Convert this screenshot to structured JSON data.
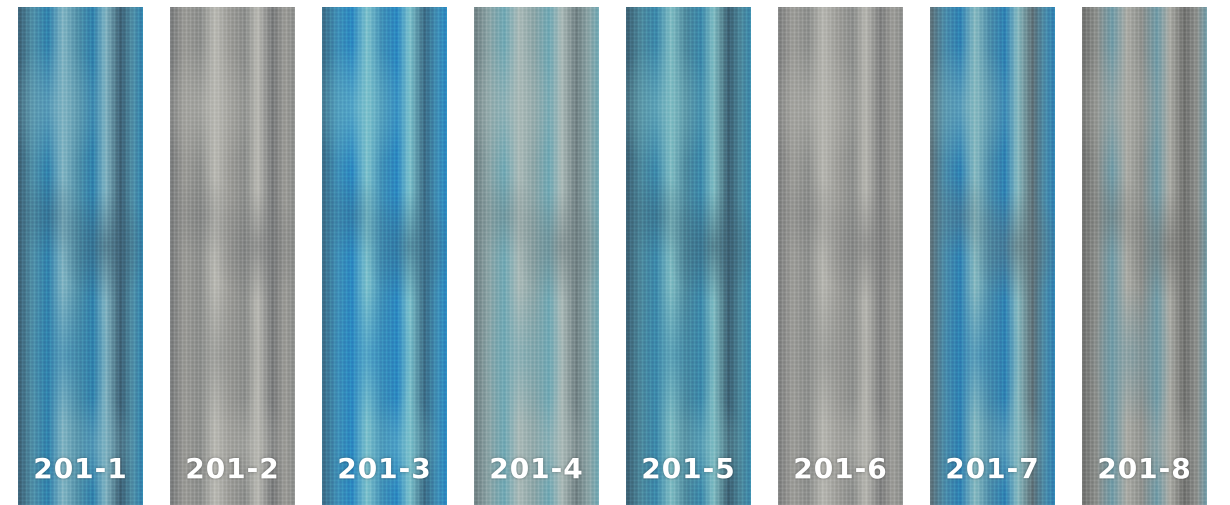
{
  "swatches": [
    {
      "code": "201-1",
      "base": "#4f8ea7",
      "accent": "#2f7fab",
      "highlight": "#7fb3c2",
      "shade": "#3c5f73"
    },
    {
      "code": "201-2",
      "base": "#9a9a96",
      "accent": "#8a8c8a",
      "highlight": "#b8b8b2",
      "shade": "#77797a"
    },
    {
      "code": "201-3",
      "base": "#3f8db5",
      "accent": "#2a86c0",
      "highlight": "#7cc1cc",
      "shade": "#3b6a84"
    },
    {
      "code": "201-4",
      "base": "#8aa4a6",
      "accent": "#6fa7b3",
      "highlight": "#a9b9b7",
      "shade": "#6f7f82"
    },
    {
      "code": "201-5",
      "base": "#4c879c",
      "accent": "#3a86a9",
      "highlight": "#7fbcc3",
      "shade": "#3b5e70"
    },
    {
      "code": "201-6",
      "base": "#9c9c98",
      "accent": "#8b8d8b",
      "highlight": "#b5b5af",
      "shade": "#7d7e7e"
    },
    {
      "code": "201-7",
      "base": "#4a8aa8",
      "accent": "#2d7fb2",
      "highlight": "#86b9c0",
      "shade": "#5d6f76"
    },
    {
      "code": "201-8",
      "base": "#8c8f8c",
      "accent": "#6f9aa6",
      "highlight": "#a9aaa4",
      "shade": "#6f706e"
    }
  ]
}
